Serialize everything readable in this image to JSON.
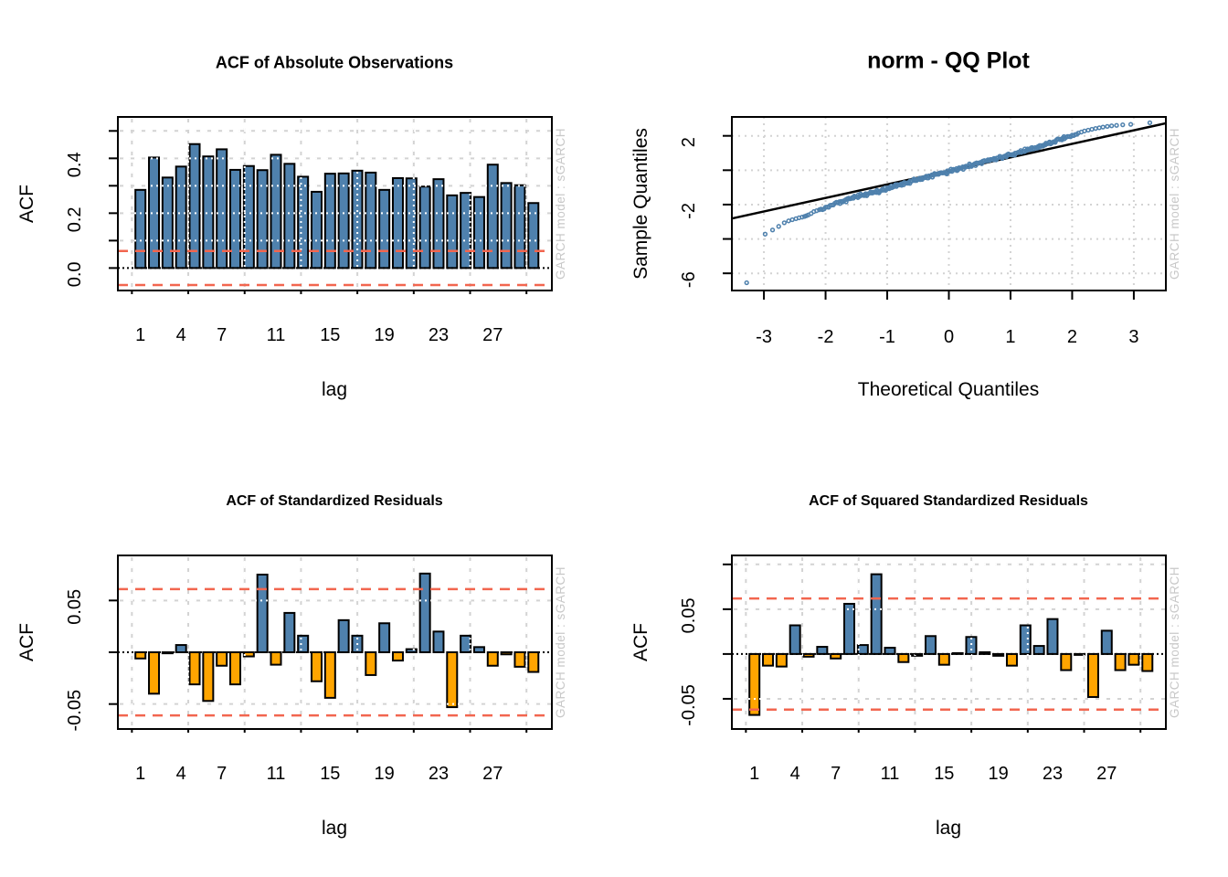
{
  "page": {
    "background": "#ffffff"
  },
  "watermark": {
    "text": "GARCH model :  sGARCH",
    "color": "#c8c8c8"
  },
  "colors": {
    "bar_positive_blue": "#4f81ad",
    "bar_negative_orange": "#ffa500",
    "bar_outline": "#000000",
    "confidence_red": "#f2664f",
    "grid_gray": "#d3d3d3",
    "grid_white_overlay": "#ffffff",
    "zero_line": "#000000",
    "axis": "#000000",
    "qq_point_blue": "#4f81ad",
    "qq_line": "#000000"
  },
  "chart_data": [
    {
      "id": "acf_abs_observations",
      "type": "bar",
      "panel": "top-left",
      "title": "ACF of Absolute Observations",
      "xlabel": "lag",
      "ylabel": "ACF",
      "lags": [
        1,
        2,
        3,
        4,
        5,
        6,
        7,
        8,
        9,
        10,
        11,
        12,
        13,
        14,
        15,
        16,
        17,
        18,
        19,
        20,
        21,
        22,
        23,
        24,
        25,
        26,
        27,
        28,
        29,
        30
      ],
      "values": [
        0.285,
        0.403,
        0.33,
        0.37,
        0.452,
        0.407,
        0.433,
        0.358,
        0.372,
        0.357,
        0.413,
        0.38,
        0.333,
        0.278,
        0.344,
        0.345,
        0.355,
        0.348,
        0.285,
        0.328,
        0.327,
        0.297,
        0.324,
        0.265,
        0.274,
        0.259,
        0.377,
        0.31,
        0.302,
        0.237
      ],
      "conf_band": 0.062,
      "ylim": [
        -0.082,
        0.551
      ],
      "y_ticks": [
        {
          "v": 0.0,
          "label": "0.0"
        },
        {
          "v": 0.1,
          "label": ""
        },
        {
          "v": 0.2,
          "label": "0.2"
        },
        {
          "v": 0.3,
          "label": ""
        },
        {
          "v": 0.4,
          "label": "0.4"
        },
        {
          "v": 0.5,
          "label": ""
        }
      ],
      "x_tick_lags": [
        1,
        4,
        7,
        11,
        15,
        19,
        23,
        27
      ],
      "x_tick_labels": [
        "1",
        "4",
        "7",
        "11",
        "15",
        "19",
        "23",
        "27"
      ],
      "grid_y": [
        0.1,
        0.2,
        0.3,
        0.4,
        0.5
      ],
      "grid_x_lags": [
        0.37,
        4.53,
        8.69,
        12.85,
        17.01,
        21.17,
        25.33,
        29.49
      ],
      "grid_style": "dashed"
    },
    {
      "id": "qq_plot",
      "type": "scatter",
      "panel": "top-right",
      "title": "norm - QQ Plot",
      "xlabel": "Theoretical Quantiles",
      "ylabel": "Sample Quantiles",
      "xlim": [
        -3.52,
        3.52
      ],
      "ylim": [
        -7.0,
        3.1
      ],
      "x_ticks": [
        {
          "v": -3,
          "label": "-3"
        },
        {
          "v": -2,
          "label": "-2"
        },
        {
          "v": -1,
          "label": "-1"
        },
        {
          "v": 0,
          "label": "0"
        },
        {
          "v": 1,
          "label": "1"
        },
        {
          "v": 2,
          "label": "2"
        },
        {
          "v": 3,
          "label": "3"
        }
      ],
      "y_ticks": [
        {
          "v": 2,
          "label": "2"
        },
        {
          "v": 0,
          "label": ""
        },
        {
          "v": -2,
          "label": "-2"
        },
        {
          "v": -4,
          "label": ""
        },
        {
          "v": -6,
          "label": "-6"
        }
      ],
      "grid_style": "dotted",
      "qq_line": {
        "slope": 0.787,
        "intercept": -0.04
      },
      "outlier_point": [
        -3.28,
        -6.55
      ],
      "left_tail_points": [
        [
          -2.98,
          -3.72
        ],
        [
          -2.86,
          -3.48
        ],
        [
          -2.76,
          -3.27
        ],
        [
          -2.67,
          -3.06
        ],
        [
          -2.6,
          -2.95
        ],
        [
          -2.54,
          -2.88
        ],
        [
          -2.48,
          -2.82
        ],
        [
          -2.43,
          -2.77
        ],
        [
          -2.38,
          -2.73
        ],
        [
          -2.34,
          -2.69
        ],
        [
          -2.31,
          -2.65
        ]
      ],
      "band_anchor_points": [
        [
          -2.28,
          -2.6
        ],
        [
          -2.1,
          -2.3
        ],
        [
          -2.0,
          -2.15
        ],
        [
          -1.9,
          -2.03
        ],
        [
          -1.8,
          -1.9
        ],
        [
          -1.7,
          -1.78
        ],
        [
          -1.6,
          -1.66
        ],
        [
          -1.5,
          -1.55
        ],
        [
          -1.4,
          -1.45
        ],
        [
          -1.3,
          -1.36
        ],
        [
          -1.2,
          -1.27
        ],
        [
          -1.1,
          -1.18
        ],
        [
          -1.0,
          -1.08
        ],
        [
          -0.9,
          -0.97
        ],
        [
          -0.8,
          -0.86
        ],
        [
          -0.7,
          -0.74
        ],
        [
          -0.6,
          -0.63
        ],
        [
          -0.5,
          -0.53
        ],
        [
          -0.4,
          -0.43
        ],
        [
          -0.3,
          -0.33
        ],
        [
          -0.2,
          -0.24
        ],
        [
          -0.1,
          -0.16
        ],
        [
          0.0,
          -0.08
        ],
        [
          0.1,
          0.02
        ],
        [
          0.2,
          0.11
        ],
        [
          0.3,
          0.22
        ],
        [
          0.4,
          0.33
        ],
        [
          0.5,
          0.44
        ],
        [
          0.6,
          0.54
        ],
        [
          0.7,
          0.63
        ],
        [
          0.8,
          0.72
        ],
        [
          0.9,
          0.81
        ],
        [
          1.0,
          0.9
        ],
        [
          1.1,
          1.0
        ],
        [
          1.2,
          1.1
        ],
        [
          1.3,
          1.21
        ],
        [
          1.4,
          1.32
        ],
        [
          1.5,
          1.43
        ],
        [
          1.6,
          1.54
        ],
        [
          1.7,
          1.66
        ],
        [
          1.8,
          1.78
        ],
        [
          1.9,
          1.91
        ],
        [
          2.0,
          2.04
        ],
        [
          2.1,
          2.16
        ]
      ],
      "right_tail_points": [
        [
          2.15,
          2.22
        ],
        [
          2.2,
          2.28
        ],
        [
          2.26,
          2.33
        ],
        [
          2.32,
          2.38
        ],
        [
          2.38,
          2.43
        ],
        [
          2.44,
          2.47
        ],
        [
          2.5,
          2.51
        ],
        [
          2.57,
          2.55
        ],
        [
          2.64,
          2.58
        ],
        [
          2.72,
          2.61
        ],
        [
          2.82,
          2.64
        ],
        [
          2.95,
          2.67
        ],
        [
          3.26,
          2.76
        ]
      ]
    },
    {
      "id": "acf_standardized_residuals",
      "type": "bar",
      "panel": "bottom-left",
      "title": "ACF of Standardized Residuals",
      "xlabel": "lag",
      "ylabel": "ACF",
      "lags": [
        1,
        2,
        3,
        4,
        5,
        6,
        7,
        8,
        9,
        10,
        11,
        12,
        13,
        14,
        15,
        16,
        17,
        18,
        19,
        20,
        21,
        22,
        23,
        24,
        25,
        26,
        27,
        28,
        29,
        30
      ],
      "values": [
        -0.006,
        -0.04,
        -0.001,
        0.007,
        -0.031,
        -0.047,
        -0.013,
        -0.031,
        -0.004,
        0.075,
        -0.012,
        0.038,
        0.016,
        -0.028,
        -0.044,
        0.031,
        0.016,
        -0.022,
        0.028,
        -0.008,
        0.003,
        0.076,
        0.02,
        -0.053,
        0.016,
        0.005,
        -0.013,
        -0.002,
        -0.014,
        -0.019
      ],
      "conf_band": 0.061,
      "ylim": [
        -0.0741,
        0.0935
      ],
      "y_ticks": [
        {
          "v": 0.05,
          "label": "0.05"
        },
        {
          "v": 0,
          "label": ""
        },
        {
          "v": -0.05,
          "label": "-0.05"
        }
      ],
      "x_tick_lags": [
        1,
        4,
        7,
        11,
        15,
        19,
        23,
        27
      ],
      "x_tick_labels": [
        "1",
        "4",
        "7",
        "11",
        "15",
        "19",
        "23",
        "27"
      ],
      "grid_y": [
        0.05,
        -0.05
      ],
      "grid_x_lags": [
        0.37,
        4.53,
        8.69,
        12.85,
        17.01,
        21.17,
        25.33,
        29.49
      ],
      "grid_style": "dashed"
    },
    {
      "id": "acf_squared_standardized_residuals",
      "type": "bar",
      "panel": "bottom-right",
      "title": "ACF of Squared Standardized Residuals",
      "xlabel": "lag",
      "ylabel": "ACF",
      "lags": [
        1,
        2,
        3,
        4,
        5,
        6,
        7,
        8,
        9,
        10,
        11,
        12,
        13,
        14,
        15,
        16,
        17,
        18,
        19,
        20,
        21,
        22,
        23,
        24,
        25,
        26,
        27,
        28,
        29,
        30
      ],
      "values": [
        -0.068,
        -0.013,
        -0.014,
        0.032,
        -0.003,
        0.008,
        -0.005,
        0.056,
        0.01,
        0.089,
        0.007,
        -0.009,
        -0.002,
        0.02,
        -0.012,
        0.001,
        0.019,
        0.002,
        -0.002,
        -0.013,
        0.032,
        0.009,
        0.039,
        -0.018,
        -0.001,
        -0.048,
        0.026,
        -0.018,
        -0.012,
        -0.019
      ],
      "conf_band": 0.062,
      "ylim": [
        -0.0837,
        0.11
      ],
      "y_ticks": [
        {
          "v": 0.1,
          "label": ""
        },
        {
          "v": 0.05,
          "label": "0.05"
        },
        {
          "v": 0,
          "label": ""
        },
        {
          "v": -0.05,
          "label": "-0.05"
        }
      ],
      "x_tick_lags": [
        1,
        4,
        7,
        11,
        15,
        19,
        23,
        27
      ],
      "x_tick_labels": [
        "1",
        "4",
        "7",
        "11",
        "15",
        "19",
        "23",
        "27"
      ],
      "grid_y": [
        0.1,
        0.05,
        -0.05
      ],
      "grid_x_lags": [
        0.37,
        4.53,
        8.69,
        12.85,
        17.01,
        21.17,
        25.33,
        29.49
      ],
      "grid_style": "dashed"
    }
  ]
}
